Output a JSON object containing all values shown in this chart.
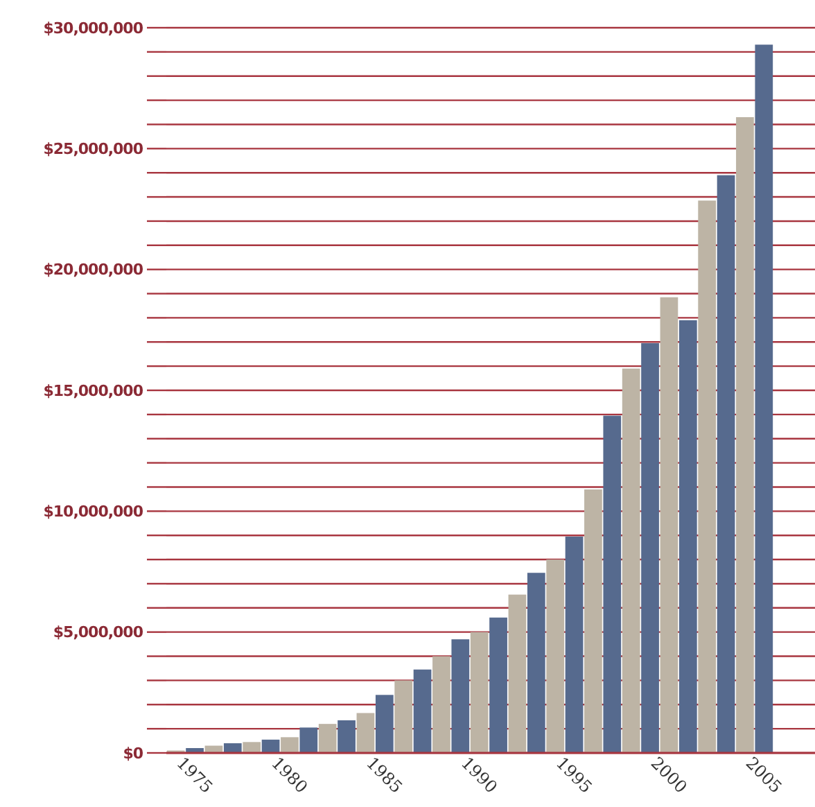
{
  "chart_data": {
    "type": "bar",
    "categories": [
      "1975",
      null,
      null,
      null,
      null,
      "1980",
      null,
      null,
      null,
      null,
      "1985",
      null,
      null,
      null,
      null,
      "1990",
      null,
      null,
      null,
      null,
      "1995",
      null,
      null,
      null,
      null,
      "2000",
      null,
      null,
      null,
      null,
      "2005",
      null
    ],
    "values": [
      100000.0,
      200000.0,
      300000.0,
      400000.0,
      450000.0,
      550000.0,
      650000.0,
      1050000.0,
      1200000.0,
      1350000.0,
      1650000.0,
      2400000.0,
      3000000.0,
      3450000.0,
      4000000.0,
      4700000.0,
      5000000.0,
      5600000.0,
      6550000.0,
      7450000.0,
      8000000.0,
      8950000.0,
      10900000.0,
      13950000.0,
      15900000.0,
      16950000.0,
      18850000.0,
      17900000.0,
      22850000.0,
      23900000.0,
      26300000.0,
      29300000.0
    ],
    "colors": [
      "#bdb4a5",
      "#566a8e",
      "#bdb4a5",
      "#566a8e",
      "#bdb4a5",
      "#566a8e",
      "#bdb4a5",
      "#566a8e",
      "#bdb4a5",
      "#566a8e",
      "#bdb4a5",
      "#566a8e",
      "#bdb4a5",
      "#566a8e",
      "#bdb4a5",
      "#566a8e",
      "#bdb4a5",
      "#566a8e",
      "#bdb4a5",
      "#566a8e",
      "#bdb4a5",
      "#566a8e",
      "#bdb4a5",
      "#566a8e",
      "#bdb4a5",
      "#566a8e",
      "#bdb4a5",
      "#566a8e",
      "#bdb4a5",
      "#566a8e",
      "#bdb4a5",
      "#566a8e"
    ],
    "ylim": [
      0,
      30000000
    ],
    "yticks": [
      {
        "value": 0,
        "label": "$0"
      },
      {
        "value": 1000000,
        "label": null
      },
      {
        "value": 2000000,
        "label": null
      },
      {
        "value": 3000000,
        "label": null
      },
      {
        "value": 4000000,
        "label": null
      },
      {
        "value": 5000000,
        "label": "$5,000,000"
      },
      {
        "value": 6000000,
        "label": null
      },
      {
        "value": 7000000,
        "label": null
      },
      {
        "value": 8000000,
        "label": null
      },
      {
        "value": 9000000,
        "label": null
      },
      {
        "value": 10000000,
        "label": "$10,000,000"
      },
      {
        "value": 11000000,
        "label": null
      },
      {
        "value": 12000000,
        "label": null
      },
      {
        "value": 13000000,
        "label": null
      },
      {
        "value": 14000000,
        "label": null
      },
      {
        "value": 15000000,
        "label": "$15,000,000"
      },
      {
        "value": 16000000,
        "label": null
      },
      {
        "value": 17000000,
        "label": null
      },
      {
        "value": 18000000,
        "label": null
      },
      {
        "value": 19000000,
        "label": null
      },
      {
        "value": 20000000,
        "label": "$20,000,000"
      },
      {
        "value": 21000000,
        "label": null
      },
      {
        "value": 22000000,
        "label": null
      },
      {
        "value": 23000000,
        "label": null
      },
      {
        "value": 24000000,
        "label": null
      },
      {
        "value": 25000000,
        "label": "$25,000,000"
      },
      {
        "value": 26000000,
        "label": null
      },
      {
        "value": 27000000,
        "label": null
      },
      {
        "value": 28000000,
        "label": null
      },
      {
        "value": 29000000,
        "label": null
      },
      {
        "value": 30000000,
        "label": "$30,000,000"
      }
    ],
    "grid": "y"
  }
}
